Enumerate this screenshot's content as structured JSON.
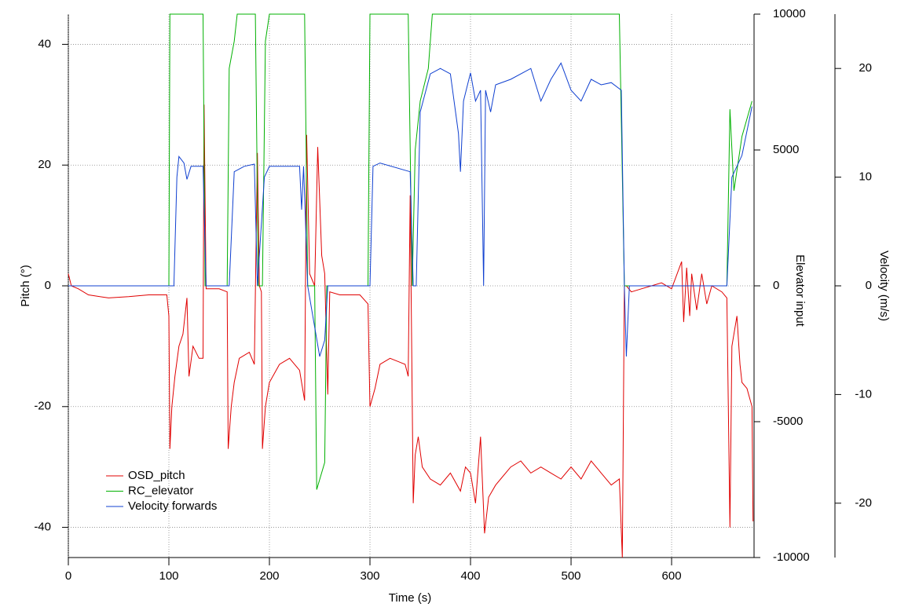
{
  "chart_data": {
    "type": "line",
    "xlabel": "Time (s)",
    "ylabel": "Pitch (°)",
    "y2label": "Elevator input",
    "y3label": "Velocity (m/s)",
    "xlim": [
      0,
      682
    ],
    "xticks": [
      0,
      100,
      200,
      300,
      400,
      500,
      600
    ],
    "ylim": [
      -45,
      45
    ],
    "yticks": [
      -40,
      -20,
      0,
      20,
      40
    ],
    "y2lim": [
      -10000,
      10000
    ],
    "y2ticks": [
      -10000,
      -5000,
      0,
      5000,
      10000
    ],
    "y3lim": [
      -25,
      25
    ],
    "y3ticks": [
      -20,
      -10,
      0,
      10,
      20
    ],
    "grid": true,
    "legend": "lower left",
    "series": [
      {
        "name": "OSD_pitch",
        "color": "#e00000",
        "axis": "y",
        "x": [
          0,
          3,
          10,
          20,
          40,
          60,
          80,
          98,
          100,
          101,
          103,
          106,
          110,
          114,
          118,
          120,
          124,
          130,
          134,
          135,
          137,
          150,
          158,
          159,
          162,
          165,
          170,
          180,
          185,
          188,
          190,
          192,
          193,
          196,
          200,
          210,
          220,
          230,
          235,
          237,
          240,
          245,
          248,
          252,
          255,
          258,
          260,
          270,
          290,
          298,
          300,
          305,
          310,
          320,
          335,
          338,
          340,
          343,
          345,
          348,
          352,
          360,
          370,
          380,
          390,
          395,
          400,
          405,
          410,
          414,
          418,
          425,
          430,
          440,
          450,
          460,
          470,
          480,
          490,
          500,
          510,
          520,
          530,
          540,
          548,
          551,
          553,
          555,
          560,
          570,
          580,
          590,
          600,
          610,
          612,
          615,
          618,
          620,
          625,
          630,
          635,
          640,
          650,
          655,
          658,
          660,
          665,
          668,
          670,
          675,
          680,
          681
        ],
        "values": [
          2,
          0,
          -0.5,
          -1.5,
          -2,
          -1.8,
          -1.5,
          -1.5,
          -5,
          -27,
          -20,
          -15,
          -10,
          -8,
          -2,
          -15,
          -10,
          -12,
          -12,
          30,
          -0.5,
          -0.5,
          -1,
          -27,
          -20,
          -16,
          -12,
          -11,
          -13,
          22,
          0,
          -1,
          -27,
          -20,
          -16,
          -13,
          -12,
          -14,
          -19,
          25,
          2,
          0,
          23,
          5,
          2,
          -18,
          -1,
          -1.5,
          -1.5,
          -3,
          -20,
          -17,
          -13,
          -12,
          -13,
          -15,
          15,
          -36,
          -28,
          -25,
          -30,
          -32,
          -33,
          -31,
          -34,
          -30,
          -31,
          -36,
          -25,
          -41,
          -35,
          -33,
          -32,
          -30,
          -29,
          -31,
          -30,
          -31,
          -32,
          -30,
          -32,
          -29,
          -31,
          -33,
          -32,
          -45,
          0,
          0,
          -1,
          -0.5,
          0,
          0.5,
          -0.5,
          4,
          -6,
          3,
          -5,
          2,
          -4,
          2,
          -3,
          0,
          -1,
          -2,
          -40,
          -10,
          -5,
          -13,
          -16,
          -17,
          -20,
          -39
        ]
      },
      {
        "name": "RC_elevator",
        "color": "#00b000",
        "axis": "y2",
        "x": [
          0,
          100,
          101,
          134,
          136,
          158,
          160,
          165,
          168,
          186,
          189,
          193,
          196,
          200,
          235,
          238,
          245,
          247,
          255,
          257,
          298,
          300,
          338,
          342,
          345,
          350,
          358,
          362,
          548,
          553,
          655,
          658,
          662,
          670,
          680
        ],
        "values": [
          0,
          0,
          10000,
          10000,
          0,
          0,
          8000,
          9000,
          10000,
          10000,
          0,
          0,
          9000,
          10000,
          10000,
          0,
          0,
          -7500,
          -6500,
          0,
          0,
          10000,
          10000,
          0,
          5000,
          6800,
          8000,
          10000,
          10000,
          0,
          0,
          6500,
          3500,
          5500,
          6800
        ]
      },
      {
        "name": "Velocity forwards",
        "color": "#1040d0",
        "axis": "y3",
        "x": [
          0,
          105,
          108,
          110,
          115,
          118,
          122,
          130,
          134,
          137,
          160,
          165,
          175,
          185,
          188,
          195,
          200,
          230,
          232,
          234,
          238,
          250,
          255,
          258,
          300,
          303,
          310,
          340,
          343,
          346,
          350,
          360,
          370,
          380,
          388,
          390,
          393,
          400,
          405,
          410,
          413,
          415,
          420,
          425,
          440,
          460,
          470,
          480,
          490,
          500,
          510,
          520,
          530,
          540,
          550,
          553,
          555,
          558,
          655,
          660,
          670,
          680
        ],
        "values": [
          0,
          0,
          10,
          11.9,
          11.3,
          9.8,
          11,
          11,
          11,
          0,
          0,
          10.5,
          11,
          11.2,
          0,
          10,
          11,
          11,
          7,
          11,
          0,
          -6.5,
          -5,
          0,
          0,
          11,
          11.3,
          10.5,
          0,
          0,
          16,
          19.5,
          20,
          19.5,
          14,
          10.5,
          17,
          19.6,
          17,
          18,
          0,
          18,
          16,
          18.5,
          19,
          20,
          17,
          19,
          20.5,
          18,
          17,
          19,
          18.5,
          18.7,
          18,
          0,
          -6.5,
          0,
          0,
          10,
          12,
          16.5
        ]
      }
    ]
  }
}
